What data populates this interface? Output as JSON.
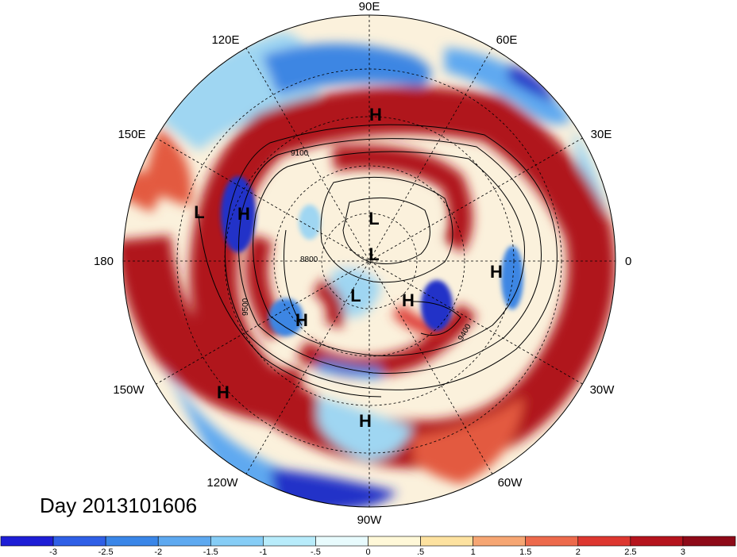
{
  "date_label": "Day 2013101606",
  "longitude_labels": [
    {
      "text": "90E",
      "lon": 90
    },
    {
      "text": "60E",
      "lon": 60
    },
    {
      "text": "30E",
      "lon": 30
    },
    {
      "text": "0",
      "lon": 0
    },
    {
      "text": "30W",
      "lon": -30
    },
    {
      "text": "60W",
      "lon": -60
    },
    {
      "text": "90W",
      "lon": -90
    },
    {
      "text": "120W",
      "lon": -120
    },
    {
      "text": "150W",
      "lon": -150
    },
    {
      "text": "180",
      "lon": 180
    },
    {
      "text": "150E",
      "lon": 150
    },
    {
      "text": "120E",
      "lon": 120
    }
  ],
  "pressure_centers": [
    {
      "type": "H",
      "label": "H"
    },
    {
      "type": "H",
      "label": "H"
    },
    {
      "type": "H",
      "label": "H"
    },
    {
      "type": "H",
      "label": "H"
    },
    {
      "type": "H",
      "label": "H"
    },
    {
      "type": "H",
      "label": "H"
    },
    {
      "type": "H",
      "label": "H"
    },
    {
      "type": "L",
      "label": "L"
    },
    {
      "type": "L",
      "label": "L"
    },
    {
      "type": "L",
      "label": "L"
    },
    {
      "type": "L",
      "label": "L"
    }
  ],
  "contour_labels": [
    "9100",
    "9500",
    "9400",
    "8800"
  ],
  "colorbar": {
    "ticks": [
      "-3",
      "-2.5",
      "-2",
      "-1.5",
      "-1",
      "-.5",
      "0",
      ".5",
      "1",
      "1.5",
      "2",
      "2.5",
      "3"
    ],
    "colors": [
      "#1e1ed6",
      "#2f5fe6",
      "#3a86e8",
      "#5ea9f0",
      "#86cdf6",
      "#b8ecfb",
      "#e8fbfd",
      "#fff8d8",
      "#fde2a0",
      "#f6a673",
      "#ed6a4c",
      "#dd3730",
      "#b5141d",
      "#8e0a18"
    ]
  },
  "colors": {
    "strong_positive": "#b0141c",
    "positive": "#e35a3f",
    "weak_positive": "#f7c79c",
    "neutral": "#fbf1dc",
    "weak_negative": "#9fd6f2",
    "negative": "#3e86e3",
    "strong_negative": "#2231c8"
  }
}
